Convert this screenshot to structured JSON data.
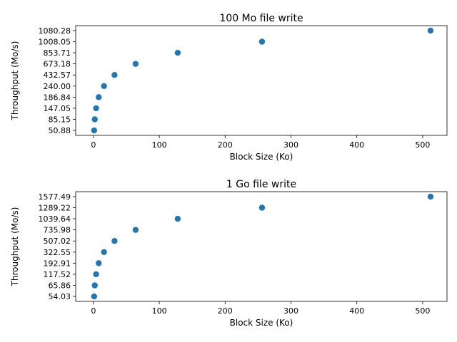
{
  "chart_data": [
    {
      "type": "scatter",
      "title": "100 Mo file write",
      "xlabel": "Block Size (Ko)",
      "ylabel": "Throughput (Mo/s)",
      "xlim": [
        -27,
        537
      ],
      "xticks": [
        0,
        100,
        200,
        300,
        400,
        500
      ],
      "y_axis": "categorical",
      "yticks": [
        "50.88",
        "85.15",
        "147.05",
        "186.84",
        "240.00",
        "432.57",
        "673.18",
        "853.71",
        "1008.05",
        "1080.28"
      ],
      "marker_color": "#1f77b4",
      "grid": false,
      "points": [
        {
          "x": 1,
          "y": "50.88"
        },
        {
          "x": 2,
          "y": "85.15"
        },
        {
          "x": 4,
          "y": "147.05"
        },
        {
          "x": 8,
          "y": "186.84"
        },
        {
          "x": 16,
          "y": "240.00"
        },
        {
          "x": 32,
          "y": "432.57"
        },
        {
          "x": 64,
          "y": "673.18"
        },
        {
          "x": 128,
          "y": "853.71"
        },
        {
          "x": 256,
          "y": "1008.05"
        },
        {
          "x": 512,
          "y": "1080.28"
        }
      ]
    },
    {
      "type": "scatter",
      "title": "1 Go file write",
      "xlabel": "Block Size (Ko)",
      "ylabel": "Throughput (Mo/s)",
      "xlim": [
        -27,
        537
      ],
      "xticks": [
        0,
        100,
        200,
        300,
        400,
        500
      ],
      "y_axis": "categorical",
      "yticks": [
        "54.03",
        "65.86",
        "117.52",
        "192.91",
        "322.55",
        "507.02",
        "735.98",
        "1039.64",
        "1289.22",
        "1577.49"
      ],
      "marker_color": "#1f77b4",
      "grid": false,
      "points": [
        {
          "x": 1,
          "y": "54.03"
        },
        {
          "x": 2,
          "y": "65.86"
        },
        {
          "x": 4,
          "y": "117.52"
        },
        {
          "x": 8,
          "y": "192.91"
        },
        {
          "x": 16,
          "y": "322.55"
        },
        {
          "x": 32,
          "y": "507.02"
        },
        {
          "x": 64,
          "y": "735.98"
        },
        {
          "x": 128,
          "y": "1039.64"
        },
        {
          "x": 256,
          "y": "1289.22"
        },
        {
          "x": 512,
          "y": "1577.49"
        }
      ]
    }
  ]
}
